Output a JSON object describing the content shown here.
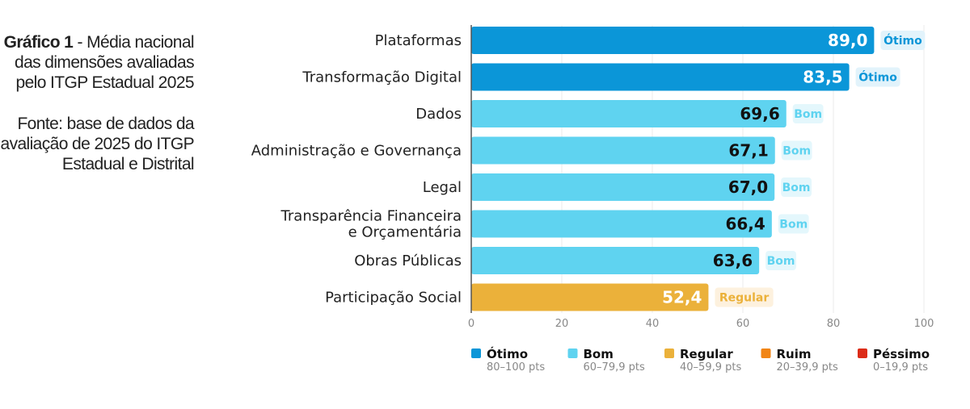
{
  "caption": {
    "title_bold": "Gráfico 1",
    "title_rest": " - Média nacional das dimensões avaliadas pelo ITGP Estadual 2025",
    "source": "Fonte: base de dados da avaliação de 2025 do ITGP Estadual e Distrital"
  },
  "chart_data": {
    "type": "bar",
    "orientation": "horizontal",
    "title": "Média nacional das dimensões avaliadas pelo ITGP Estadual 2025",
    "xlabel": "",
    "ylabel": "",
    "xlim": [
      0,
      100
    ],
    "xticks": [
      0,
      20,
      40,
      60,
      80,
      100
    ],
    "grid": true,
    "categories": [
      [
        "Plataformas"
      ],
      [
        "Transformação Digital"
      ],
      [
        "Dados"
      ],
      [
        "Administração e Governança"
      ],
      [
        "Legal"
      ],
      [
        "Transparência Financeira",
        "e Orçamentária"
      ],
      [
        "Obras Públicas"
      ],
      [
        "Participação Social"
      ]
    ],
    "values": [
      89.0,
      83.5,
      69.6,
      67.1,
      67.0,
      66.4,
      63.6,
      52.4
    ],
    "value_labels": [
      "89,0",
      "83,5",
      "69,6",
      "67,1",
      "67,0",
      "66,4",
      "63,6",
      "52,4"
    ],
    "ratings": [
      "Ótimo",
      "Ótimo",
      "Bom",
      "Bom",
      "Bom",
      "Bom",
      "Bom",
      "Regular"
    ],
    "legend_position": "bottom",
    "legend": [
      {
        "name": "Ótimo",
        "range": "80–100 pts",
        "color": "#0b96d8",
        "badge_bg": "#e2f3fb",
        "value_color": "#ffffff"
      },
      {
        "name": "Bom",
        "range": "60–79,9 pts",
        "color": "#5fd3f0",
        "badge_bg": "#e4f7fc",
        "value_color": "#111111"
      },
      {
        "name": "Regular",
        "range": "40–59,9 pts",
        "color": "#ebb13a",
        "badge_bg": "#fdf1de",
        "value_color": "#ffffff"
      },
      {
        "name": "Ruim",
        "range": "20–39,9 pts",
        "color": "#f18515",
        "badge_bg": "#fde7d2",
        "value_color": "#ffffff"
      },
      {
        "name": "Péssimo",
        "range": "0–19,9 pts",
        "color": "#dc2c18",
        "badge_bg": "#fadcd8",
        "value_color": "#ffffff"
      }
    ]
  }
}
